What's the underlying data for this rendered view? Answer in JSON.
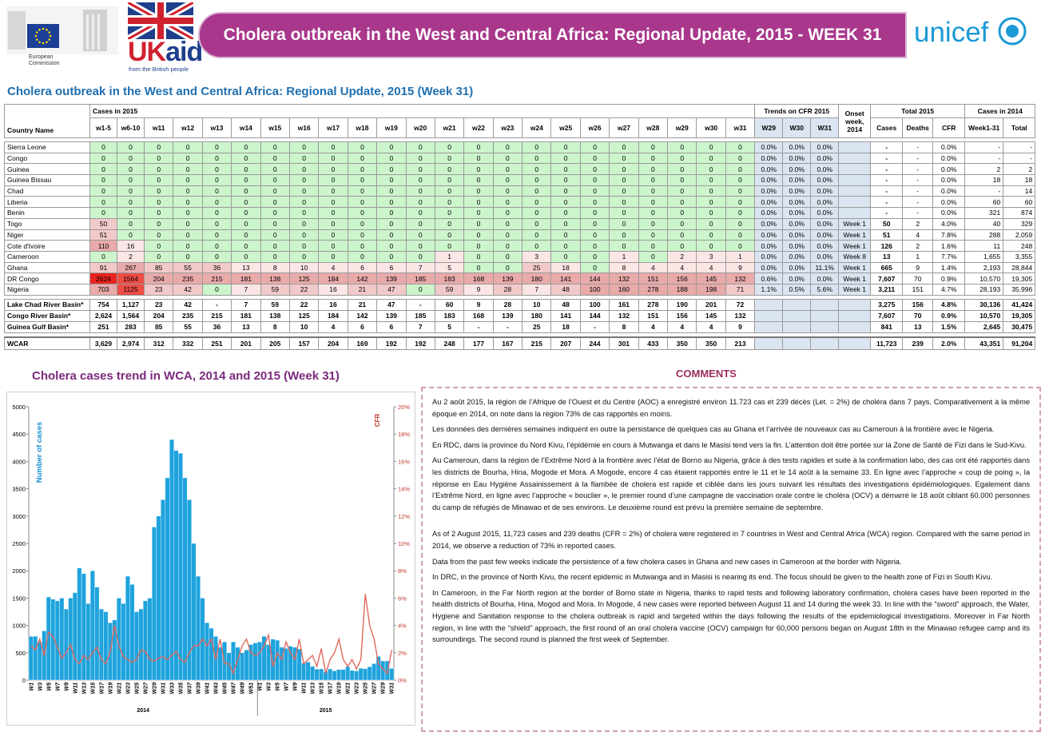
{
  "header": {
    "title": "Cholera outbreak in the West and Central Africa: Regional Update, 2015 - WEEK 31",
    "eu_label": "European Commission",
    "uk": "UK",
    "aid": "aid",
    "ukaid_tagline": "from the British people",
    "unicef": "unicef"
  },
  "table": {
    "title": "Cholera outbreak in the West and Central Africa: Regional Update, 2015 (Week 31)",
    "country_header": "Country Name",
    "groups": {
      "cases_2015": "Cases in 2015",
      "cfr_trend": "Trends on CFR 2015",
      "onset": "Onset week, 2014",
      "total_2015": "Total 2015",
      "cases_2014": "Cases in 2014"
    },
    "week_columns": [
      "w1-5",
      "w6-10",
      "w11",
      "w12",
      "w13",
      "w14",
      "w15",
      "w16",
      "w17",
      "w18",
      "w19",
      "w20",
      "w21",
      "w22",
      "w23",
      "w24",
      "w25",
      "w26",
      "w27",
      "w28",
      "w29",
      "w30",
      "w31"
    ],
    "trend_columns": [
      "W29",
      "W30",
      "W31"
    ],
    "total_columns": [
      "Cases",
      "Deaths",
      "CFR"
    ],
    "cases_2014_columns": [
      "Week1-31",
      "Total"
    ],
    "rows": [
      [
        "Sierra Leone",
        "0",
        "0",
        "0",
        "0",
        "0",
        "0",
        "0",
        "0",
        "0",
        "0",
        "0",
        "0",
        "0",
        "0",
        "0",
        "0",
        "0",
        "0",
        "0",
        "0",
        "0",
        "0",
        "0",
        "0.0%",
        "0.0%",
        "0.0%",
        null,
        "-",
        "-",
        "0.0%",
        "-",
        "-"
      ],
      [
        "Congo",
        "0",
        "0",
        "0",
        "0",
        "0",
        "0",
        "0",
        "0",
        "0",
        "0",
        "0",
        "0",
        "0",
        "0",
        "0",
        "0",
        "0",
        "0",
        "0",
        "0",
        "0",
        "0",
        "0",
        "0.0%",
        "0.0%",
        "0.0%",
        null,
        "-",
        "-",
        "0.0%",
        "-",
        "-"
      ],
      [
        "Guinea",
        "0",
        "0",
        "0",
        "0",
        "0",
        "0",
        "0",
        "0",
        "0",
        "0",
        "0",
        "0",
        "0",
        "0",
        "0",
        "0",
        "0",
        "0",
        "0",
        "0",
        "0",
        "0",
        "0",
        "0.0%",
        "0.0%",
        "0.0%",
        null,
        "-",
        "-",
        "0.0%",
        "2",
        "2"
      ],
      [
        "Guinea Bissau",
        "0",
        "0",
        "0",
        "0",
        "0",
        "0",
        "0",
        "0",
        "0",
        "0",
        "0",
        "0",
        "0",
        "0",
        "0",
        "0",
        "0",
        "0",
        "0",
        "0",
        "0",
        "0",
        "0",
        "0.0%",
        "0.0%",
        "0.0%",
        null,
        "-",
        "-",
        "0.0%",
        "18",
        "18"
      ],
      [
        "Chad",
        "0",
        "0",
        "0",
        "0",
        "0",
        "0",
        "0",
        "0",
        "0",
        "0",
        "0",
        "0",
        "0",
        "0",
        "0",
        "0",
        "0",
        "0",
        "0",
        "0",
        "0",
        "0",
        "0",
        "0.0%",
        "0.0%",
        "0.0%",
        null,
        "-",
        "-",
        "0.0%",
        "-",
        "14"
      ],
      [
        "Liberia",
        "0",
        "0",
        "0",
        "0",
        "0",
        "0",
        "0",
        "0",
        "0",
        "0",
        "0",
        "0",
        "0",
        "0",
        "0",
        "0",
        "0",
        "0",
        "0",
        "0",
        "0",
        "0",
        "0",
        "0.0%",
        "0.0%",
        "0.0%",
        null,
        "-",
        "-",
        "0.0%",
        "60",
        "60"
      ],
      [
        "Benin",
        "0",
        "0",
        "0",
        "0",
        "0",
        "0",
        "0",
        "0",
        "0",
        "0",
        "0",
        "0",
        "0",
        "0",
        "0",
        "0",
        "0",
        "0",
        "0",
        "0",
        "0",
        "0",
        "0",
        "0.0%",
        "0.0%",
        "0.0%",
        null,
        "-",
        "-",
        "0.0%",
        "321",
        "874"
      ],
      [
        "Togo",
        "50",
        "0",
        "0",
        "0",
        "0",
        "0",
        "0",
        "0",
        "0",
        "0",
        "0",
        "0",
        "0",
        "0",
        "0",
        "0",
        "0",
        "0",
        "0",
        "0",
        "0",
        "0",
        "0",
        "0.0%",
        "0.0%",
        "0.0%",
        "Week 1",
        "50",
        "2",
        "4.0%",
        "40",
        "329"
      ],
      [
        "Niger",
        "51",
        "0",
        "0",
        "0",
        "0",
        "0",
        "0",
        "0",
        "0",
        "0",
        "0",
        "0",
        "0",
        "0",
        "0",
        "0",
        "0",
        "0",
        "0",
        "0",
        "0",
        "0",
        "0",
        "0.0%",
        "0.0%",
        "0.0%",
        "Week 1",
        "51",
        "4",
        "7.8%",
        "288",
        "2,059"
      ],
      [
        "Cote d'Ivoire",
        "110",
        "16",
        "0",
        "0",
        "0",
        "0",
        "0",
        "0",
        "0",
        "0",
        "0",
        "0",
        "0",
        "0",
        "0",
        "0",
        "0",
        "0",
        "0",
        "0",
        "0",
        "0",
        "0",
        "0.0%",
        "0.0%",
        "0.0%",
        "Week 1",
        "126",
        "2",
        "1.6%",
        "11",
        "248"
      ],
      [
        "Cameroon",
        "0",
        "2",
        "0",
        "0",
        "0",
        "0",
        "0",
        "0",
        "0",
        "0",
        "0",
        "0",
        "1",
        "0",
        "0",
        "3",
        "0",
        "0",
        "1",
        "0",
        "2",
        "3",
        "1",
        "0.0%",
        "0.0%",
        "0.0%",
        "Week 8",
        "13",
        "1",
        "7.7%",
        "1,655",
        "3,355"
      ],
      [
        "Ghana",
        "91",
        "267",
        "85",
        "55",
        "36",
        "13",
        "8",
        "10",
        "4",
        "6",
        "6",
        "7",
        "5",
        "0",
        "0",
        "25",
        "18",
        "0",
        "8",
        "4",
        "4",
        "4",
        "9",
        "0.0%",
        "0.0%",
        "11.1%",
        "Week 1",
        "665",
        "9",
        "1.4%",
        "2,193",
        "28,844"
      ],
      [
        "DR Congo",
        "2624",
        "1564",
        "204",
        "235",
        "215",
        "181",
        "138",
        "125",
        "184",
        "142",
        "139",
        "185",
        "183",
        "168",
        "139",
        "180",
        "141",
        "144",
        "132",
        "151",
        "156",
        "145",
        "132",
        "0.6%",
        "0.0%",
        "0.0%",
        "Week 1",
        "7,607",
        "70",
        "0.9%",
        "10,570",
        "19,305"
      ],
      [
        "Nigeria",
        "703",
        "1125",
        "23",
        "42",
        "0",
        "7",
        "59",
        "22",
        "16",
        "21",
        "47",
        "0",
        "59",
        "9",
        "28",
        "7",
        "48",
        "100",
        "160",
        "278",
        "188",
        "198",
        "71",
        "1.1%",
        "0.5%",
        "5.6%",
        "Week 1",
        "3,211",
        "151",
        "4.7%",
        "28,193",
        "35,996"
      ]
    ],
    "basin_rows": [
      [
        "Lake Chad River Basin*",
        "754",
        "1,127",
        "23",
        "42",
        "-",
        "7",
        "59",
        "22",
        "16",
        "21",
        "47",
        "-",
        "60",
        "9",
        "28",
        "10",
        "48",
        "100",
        "161",
        "278",
        "190",
        "201",
        "72",
        null,
        null,
        null,
        null,
        "3,275",
        "156",
        "4.8%",
        "30,136",
        "41,424"
      ],
      [
        "Congo River Basin*",
        "2,624",
        "1,564",
        "204",
        "235",
        "215",
        "181",
        "138",
        "125",
        "184",
        "142",
        "139",
        "185",
        "183",
        "168",
        "139",
        "180",
        "141",
        "144",
        "132",
        "151",
        "156",
        "145",
        "132",
        null,
        null,
        null,
        null,
        "7,607",
        "70",
        "0.9%",
        "10,570",
        "19,305"
      ],
      [
        "Guinea Gulf Basin*",
        "251",
        "283",
        "85",
        "55",
        "36",
        "13",
        "8",
        "10",
        "4",
        "6",
        "6",
        "7",
        "5",
        "-",
        "-",
        "25",
        "18",
        "-",
        "8",
        "4",
        "4",
        "4",
        "9",
        null,
        null,
        null,
        null,
        "841",
        "13",
        "1.5%",
        "2,645",
        "30,475"
      ]
    ],
    "total_row": [
      "WCAR",
      "3,629",
      "2,974",
      "312",
      "332",
      "251",
      "201",
      "205",
      "157",
      "204",
      "169",
      "192",
      "192",
      "248",
      "177",
      "167",
      "215",
      "207",
      "244",
      "301",
      "433",
      "350",
      "350",
      "213",
      null,
      null,
      null,
      null,
      "11,723",
      "239",
      "2.0%",
      "43,351",
      "91,204"
    ]
  },
  "chart_data": {
    "type": "bar",
    "title": "Cholera cases trend in WCA, 2014 and 2015 (Week 31)",
    "y_label": "Number of cases",
    "y2_label": "CFR",
    "x_groups": [
      "2014",
      "2015"
    ],
    "categories": [
      "W1",
      null,
      "W3",
      null,
      "W5",
      null,
      "W7",
      null,
      "W9",
      null,
      "W11",
      null,
      "W13",
      null,
      "W15",
      null,
      "W17",
      null,
      "W19",
      null,
      "W21",
      null,
      "W23",
      null,
      "W25",
      null,
      "W27",
      null,
      "W29",
      null,
      "W31",
      null,
      "W33",
      null,
      "W35",
      null,
      "W37",
      null,
      "W39",
      null,
      "W41",
      null,
      "W43",
      null,
      "W45",
      null,
      "W47",
      null,
      "W49",
      null,
      "W51",
      null,
      "W1",
      null,
      "W3",
      null,
      "W5",
      null,
      "W7",
      null,
      "W9",
      null,
      "W11",
      null,
      "W13",
      null,
      "W15",
      null,
      "W17",
      null,
      "W19",
      null,
      "W21",
      null,
      "W23",
      null,
      "W25",
      null,
      "W27",
      null,
      "W29",
      null,
      "W31"
    ],
    "series": [
      {
        "color": "#1ea3dd",
        "values": [
          800,
          800,
          700,
          900,
          1520,
          1480,
          1450,
          1500,
          1300,
          1500,
          1600,
          2050,
          1950,
          1400,
          2000,
          1700,
          1300,
          1250,
          1050,
          1100,
          1500,
          1400,
          1900,
          1750,
          1250,
          1300,
          1450,
          1500,
          2800,
          3000,
          3300,
          3700,
          4400,
          4200,
          4150,
          3700,
          3300,
          2500,
          1900,
          1500,
          1050,
          950,
          800,
          600,
          700,
          500,
          700,
          600,
          500,
          550,
          650,
          680,
          700,
          800,
          650,
          750,
          730,
          600,
          580,
          620,
          600,
          570,
          312,
          332,
          251,
          201,
          205,
          157,
          204,
          169,
          192,
          192,
          248,
          177,
          167,
          215,
          207,
          244,
          301,
          433,
          350,
          350,
          213
        ]
      },
      {
        "color": "#e0695e",
        "type": "line",
        "axis": "y2",
        "values": [
          2.5,
          2.2,
          3,
          1.8,
          3.5,
          3.2,
          2.4,
          1.6,
          2,
          2.6,
          1.5,
          1.2,
          1.8,
          1.5,
          2,
          2.4,
          1.5,
          1.2,
          2,
          4,
          2.5,
          1.7,
          1.5,
          1.3,
          1.5,
          2.2,
          2.1,
          1.5,
          1.4,
          1.6,
          1.7,
          1.5,
          1.8,
          2.1,
          1.5,
          1.3,
          2,
          2.5,
          2.5,
          3,
          2.5,
          3,
          1.5,
          3,
          1.2,
          1.2,
          0.5,
          1.5,
          2.5,
          3,
          2,
          1.8,
          2,
          2.5,
          3.3,
          1,
          2,
          1.5,
          2.8,
          2,
          1.5,
          3,
          1.2,
          1.5,
          1.8,
          1,
          2.3,
          0.5,
          1.5,
          2,
          3,
          1.5,
          1,
          1.5,
          0.8,
          1.5,
          6.3,
          4,
          3,
          1.2,
          0.8,
          0.5,
          2.2
        ]
      }
    ],
    "ylim": [
      0,
      5000
    ],
    "yticks": [
      0,
      500,
      1000,
      1500,
      2000,
      2500,
      3000,
      3500,
      4000,
      4500,
      5000
    ],
    "y2lim": [
      0,
      20
    ],
    "y2ticks": [
      {
        "value": 0,
        "label": "0%"
      },
      {
        "value": 2,
        "label": "2%"
      },
      {
        "value": 4,
        "label": "4%"
      },
      {
        "value": 6,
        "label": "6%"
      },
      {
        "value": 8,
        "label": "8%"
      },
      {
        "value": 10,
        "label": "10%"
      },
      {
        "value": 12,
        "label": "12%"
      },
      {
        "value": 14,
        "label": "14%"
      },
      {
        "value": 16,
        "label": "16%"
      },
      {
        "value": 18,
        "label": "18%"
      },
      {
        "value": 20,
        "label": "20%"
      }
    ],
    "grid": false
  },
  "comments": {
    "title": "COMMENTS",
    "french": [
      "Au 2 août 2015, la région de l’Afrique de l’Ouest et du Centre (AOC) a enregistré environ 11.723 cas et 239 décès (Let. = 2%) de choléra dans 7 pays.  Comparativement à la même époque en 2014, on note dans la région 73% de cas rapportés en moins.",
      "Les données des dernières semaines indiquent en outre la persistance de quelques cas au Ghana et l’arrivée de nouveaux cas au Cameroun à la frontière avec le Nigeria.",
      "En RDC, dans la province du Nord Kivu, l’épidémie en cours à Mutwanga et dans le Masisi tend vers la fin. L’attention doit être portée sur la Zone de Santé de Fizi dans le Sud-Kivu.",
      "Au Cameroun, dans la région de l’Extrême Nord à la frontière avec l’état de Borno au Nigeria, grâce à des tests rapides et suite à la confirmation labo, des cas ont été rapportés dans les districts de Bourha, Hina, Mogode et Mora. A Mogode, encore 4 cas étaient rapportés entre le 11 et le 14 août  à la semaine 33.  En ligne avec l’approche « coup de poing », la réponse en Eau Hygiène Assainissement à la flambée de cholera est rapide et ciblée dans les jours suivant les résultats des investigations épidémiologiques. Egalement dans l’Extrême Nord, en ligne avec l’approche « bouclier », le premier round d’une campagne de vaccination orale contre le choléra (OCV) a démarré le 18 août ciblant 60.000 personnes du camp de réfugiés de Minawao et de ses environs. Le deuxième round est prévu la première semaine de septembre."
    ],
    "english": [
      "As of 2 August 2015, 11,723 cases and 239 deaths (CFR = 2%) of cholera were registered in 7 countries in West and Central Africa (WCA) region. Compared with the same period in 2014, we observe a reduction of 73% in reported cases.",
      "Data from the past few weeks indicate the persistence of a few cholera cases in Ghana and new cases in Cameroon at the border with Nigeria.",
      "In DRC, in the province of North Kivu, the recent epidemic in Mutwanga and in Masisi is nearing its end. The focus should be given to the health zone of Fizi in South Kivu.",
      "In Cameroon, in the Far North region at the border of Borno state in Nigeria, thanks to rapid tests and following laboratory confirmation, cholera cases have been reported in the health districts of Bourha, Hina, Mogod and Mora. In Mogode, 4 new cases were reported between August 11 and 14 during the week 33. In line with the “sword” approach, the Water, Hygiene and Sanitation response to the cholera outbreak is rapid and targeted within the days following the results of the epidemiological investigations.  Moreover in Far North region, in line with the “shield” approach, the first round of an oral cholera vaccine (OCV) campaign for 60,000 persons began on August 18th in the Minawao refugee camp and its surroundings. The second round is planned the first week of September."
    ]
  }
}
